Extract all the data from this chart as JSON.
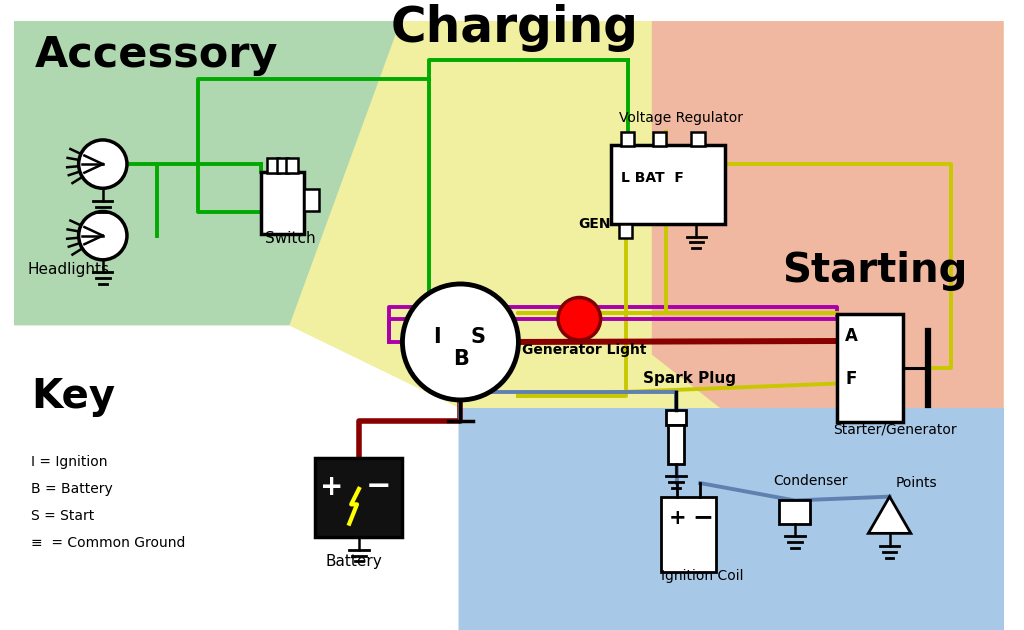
{
  "bg": "#ffffff",
  "regions": {
    "charging_yellow": "#f0f0a0",
    "accessory_green": "#b0d8b0",
    "starting_salmon": "#f0b8a0",
    "ignition_blue": "#a8c8e8",
    "key_white": "#ffffff"
  },
  "wires": {
    "green": "#00aa00",
    "yellow": "#c8c800",
    "purple": "#aa00aa",
    "dark_red": "#880000",
    "blue_gray": "#6080b0",
    "black": "#000000"
  },
  "texts": {
    "accessory": "Accessory",
    "charging": "Charging",
    "starting": "Starting",
    "key": "Key",
    "headlights": "Headlights",
    "switch": "Switch",
    "voltage_regulator": "Voltage Regulator",
    "generator_light": "Generator Light",
    "gen_label": "GEN",
    "l_bat_f": "L BAT  F",
    "battery": "Battery",
    "spark_plug": "Spark Plug",
    "condenser": "Condenser",
    "points": "Points",
    "ignition_coil": "Ignition Coil",
    "starter_gen": "Starter/Generator",
    "A": "A",
    "F": "F",
    "I": "I",
    "B": "B",
    "S": "S"
  },
  "legend": [
    "I = Ignition",
    "B = Battery",
    "S = Start",
    "≡  = Common Ground"
  ]
}
